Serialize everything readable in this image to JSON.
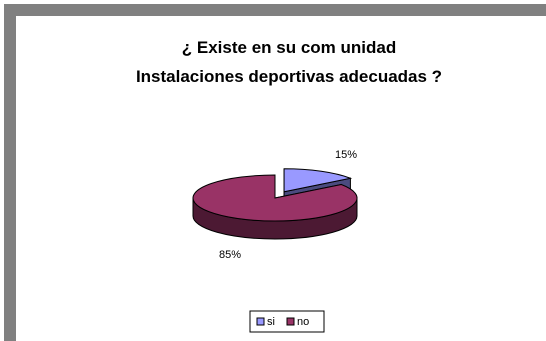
{
  "chart_data": {
    "type": "pie",
    "title": [
      "¿ Existe en su com unidad",
      "Instalaciones deportivas adecuadas ?"
    ],
    "slices": [
      {
        "name": "si",
        "value": 15,
        "label": "15%",
        "color": "#9999ff",
        "side_color": "#4b4b7f"
      },
      {
        "name": "no",
        "value": 85,
        "label": "85%",
        "color": "#993366",
        "side_color": "#4c1933"
      }
    ],
    "legend": {
      "position": "bottom",
      "items": [
        "si",
        "no"
      ]
    },
    "exploded_slice": "si",
    "three_d": true
  }
}
